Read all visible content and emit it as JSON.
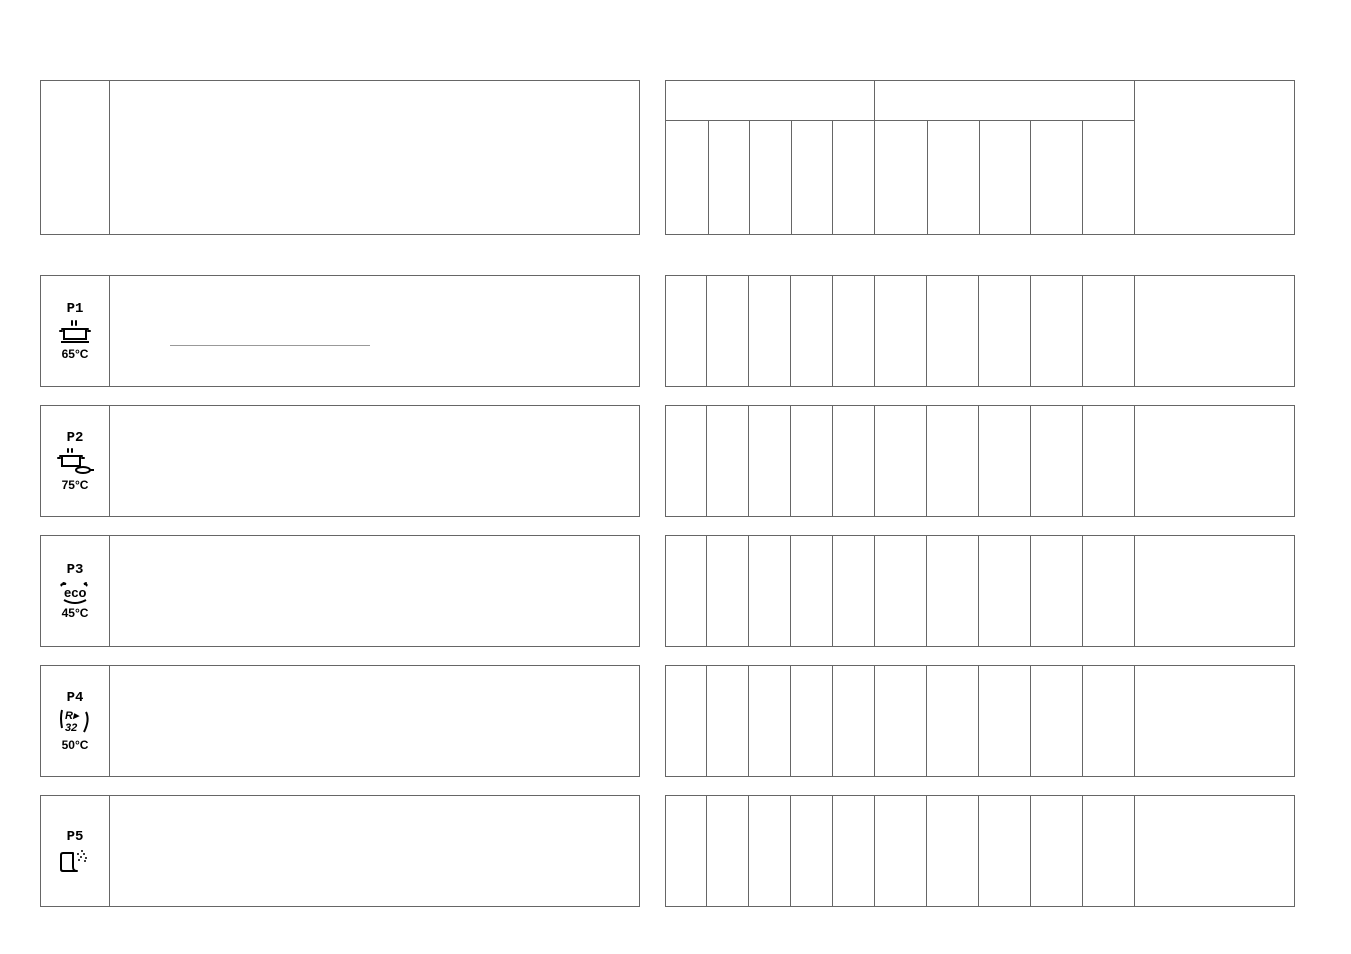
{
  "programs": [
    {
      "code": "P1",
      "temp": "65°C",
      "icon": "pot"
    },
    {
      "code": "P2",
      "temp": "75°C",
      "icon": "pot-pan"
    },
    {
      "code": "P3",
      "temp": "45°C",
      "icon": "eco"
    },
    {
      "code": "P4",
      "temp": "50°C",
      "icon": "rapid"
    },
    {
      "code": "P5",
      "temp": "",
      "icon": "rinse"
    }
  ],
  "layout": {
    "consA_sub_count": 5,
    "consB_sub_count": 5
  },
  "colors": {
    "border": "#666666",
    "light": "#999999",
    "background": "#ffffff"
  }
}
